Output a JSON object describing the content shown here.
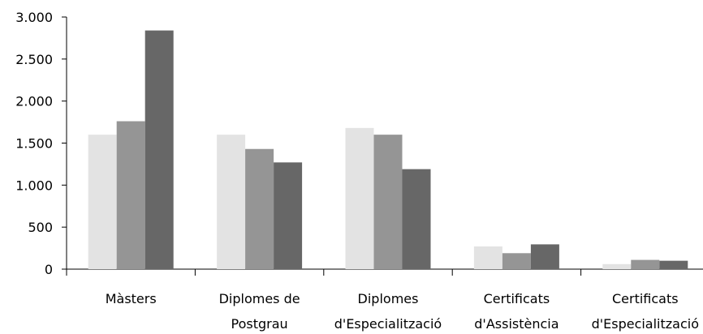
{
  "chart_data": {
    "type": "bar",
    "categories": [
      [
        "Màsters"
      ],
      [
        "Diplomes de",
        "Postgrau"
      ],
      [
        "Diplomes",
        "d'Especialització"
      ],
      [
        "Certificats",
        "d'Assistència"
      ],
      [
        "Certificats",
        "d'Especialització"
      ]
    ],
    "series": [
      {
        "values": [
          1600,
          1600,
          1680,
          270,
          60
        ],
        "color": "#e3e3e3"
      },
      {
        "values": [
          1760,
          1430,
          1600,
          190,
          110
        ],
        "color": "#959595"
      },
      {
        "values": [
          2840,
          1270,
          1190,
          295,
          100
        ],
        "color": "#676767"
      }
    ],
    "ylim": [
      0,
      3000
    ],
    "yticks": [
      0,
      500,
      1000,
      1500,
      2000,
      2500,
      3000
    ],
    "ytick_labels": [
      "0",
      "500",
      "1.000",
      "1.500",
      "2.000",
      "2.500",
      "3.000"
    ],
    "grid": false,
    "legend": "none"
  }
}
